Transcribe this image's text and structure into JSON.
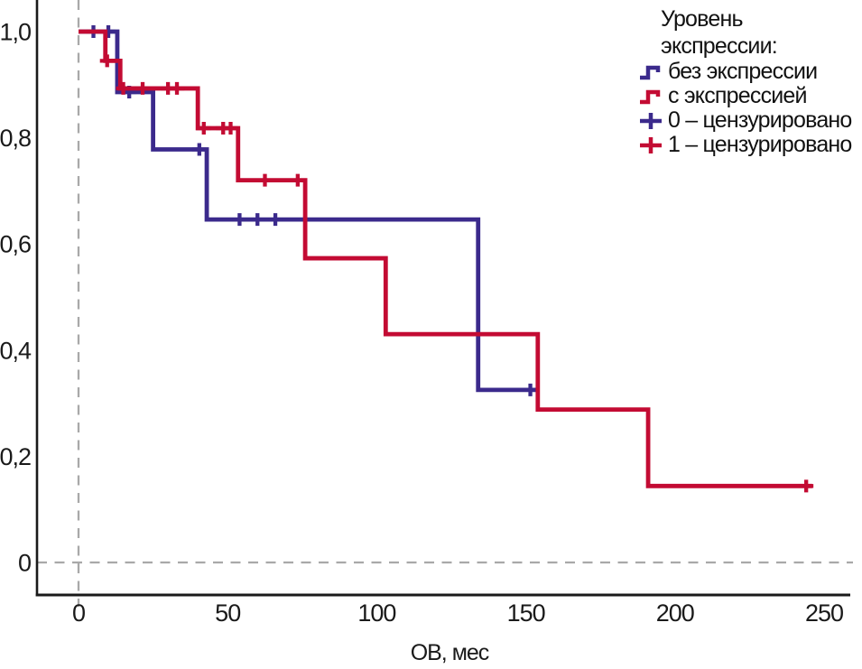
{
  "colors": {
    "no_expression": "#3b2a8c",
    "with_expression": "#c30b33",
    "axis": "#1a1a1a",
    "guide_dash": "#a9a9a9"
  },
  "legend": {
    "title": "Уровень экспрессии:",
    "items": [
      {
        "label": "без экспрессии",
        "icon": "step-line-icon",
        "color_key": "no_expression"
      },
      {
        "label": "с экспрессией",
        "icon": "step-line-icon",
        "color_key": "with_expression"
      },
      {
        "label": "0 – цензурировано",
        "icon": "plus-censor-icon",
        "color_key": "no_expression"
      },
      {
        "label": "1 – цензурировано",
        "icon": "plus-censor-icon",
        "color_key": "with_expression"
      }
    ]
  },
  "chart_data": {
    "type": "line",
    "subtype": "kaplan-meier-step",
    "title": "",
    "xlabel": "ОВ, мес",
    "ylabel": "",
    "xlim": [
      0,
      250
    ],
    "ylim": [
      0,
      1.0
    ],
    "grid": false,
    "legend_position": "top-right",
    "x_ticks": [
      {
        "value": 0,
        "label": "0"
      },
      {
        "value": 50,
        "label": "50"
      },
      {
        "value": 100,
        "label": "100"
      },
      {
        "value": 150,
        "label": "150"
      },
      {
        "value": 200,
        "label": "200"
      },
      {
        "value": 250,
        "label": "250"
      }
    ],
    "y_ticks": [
      {
        "value": 0,
        "label": "0"
      },
      {
        "value": 0.2,
        "label": "0,2"
      },
      {
        "value": 0.4,
        "label": "0,4"
      },
      {
        "value": 0.6,
        "label": "0,6"
      },
      {
        "value": 0.8,
        "label": "0,8"
      },
      {
        "value": 1.0,
        "label": "1,0"
      }
    ],
    "guides": {
      "vertical_at_x": 0,
      "horizontal_at_y": 0
    },
    "series": [
      {
        "name": "без экспрессии",
        "color_key": "no_expression",
        "start_value": 1.0,
        "steps": [
          [
            13,
            0.886
          ],
          [
            25,
            0.778
          ],
          [
            43,
            0.646
          ],
          [
            134,
            0.325
          ]
        ],
        "end_t": 154,
        "censored": [
          [
            5,
            1.0
          ],
          [
            10,
            1.0
          ],
          [
            17,
            0.886
          ],
          [
            40.5,
            0.778
          ],
          [
            54,
            0.646
          ],
          [
            60,
            0.646
          ],
          [
            66,
            0.646
          ],
          [
            151.5,
            0.325
          ]
        ]
      },
      {
        "name": "с экспрессией",
        "color_key": "with_expression",
        "start_value": 1.0,
        "steps": [
          [
            9,
            0.945
          ],
          [
            14,
            0.893
          ],
          [
            40,
            0.818
          ],
          [
            53.5,
            0.72
          ],
          [
            76,
            0.573
          ],
          [
            103,
            0.43
          ],
          [
            154,
            0.288
          ],
          [
            191,
            0.144
          ]
        ],
        "end_t": 246,
        "censored": [
          [
            9.6,
            0.945
          ],
          [
            15,
            0.893
          ],
          [
            21.5,
            0.893
          ],
          [
            30,
            0.893
          ],
          [
            33,
            0.893
          ],
          [
            42,
            0.818
          ],
          [
            48.5,
            0.818
          ],
          [
            51,
            0.818
          ],
          [
            62.5,
            0.72
          ],
          [
            73.5,
            0.72
          ],
          [
            244,
            0.144
          ]
        ]
      }
    ]
  }
}
